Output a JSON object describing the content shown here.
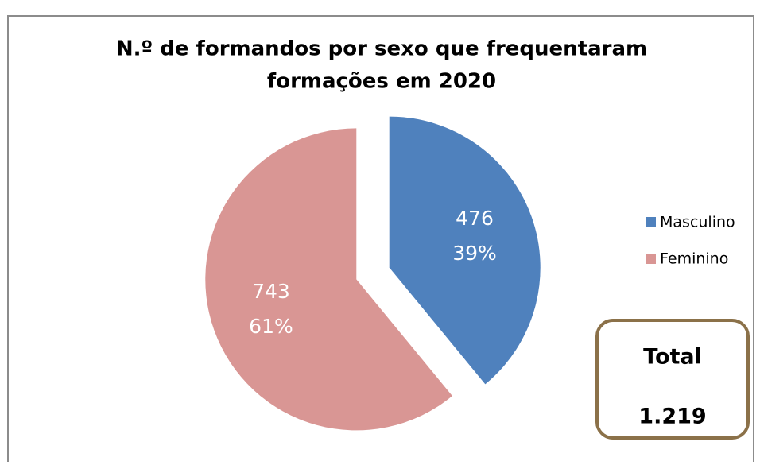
{
  "chart_data": {
    "type": "pie",
    "title_lines": [
      "N.º de formandos por sexo que frequentaram",
      "formações em 2020"
    ],
    "categories": [
      "Masculino",
      "Feminino"
    ],
    "values": [
      476,
      743
    ],
    "percentages": [
      39,
      61
    ],
    "percent_labels": [
      "39%",
      "61%"
    ],
    "colors": [
      "#4f81bd",
      "#d99694"
    ],
    "legend": "right",
    "exploded": true,
    "total_box": {
      "title": "Total",
      "value_label": "1.219"
    }
  }
}
